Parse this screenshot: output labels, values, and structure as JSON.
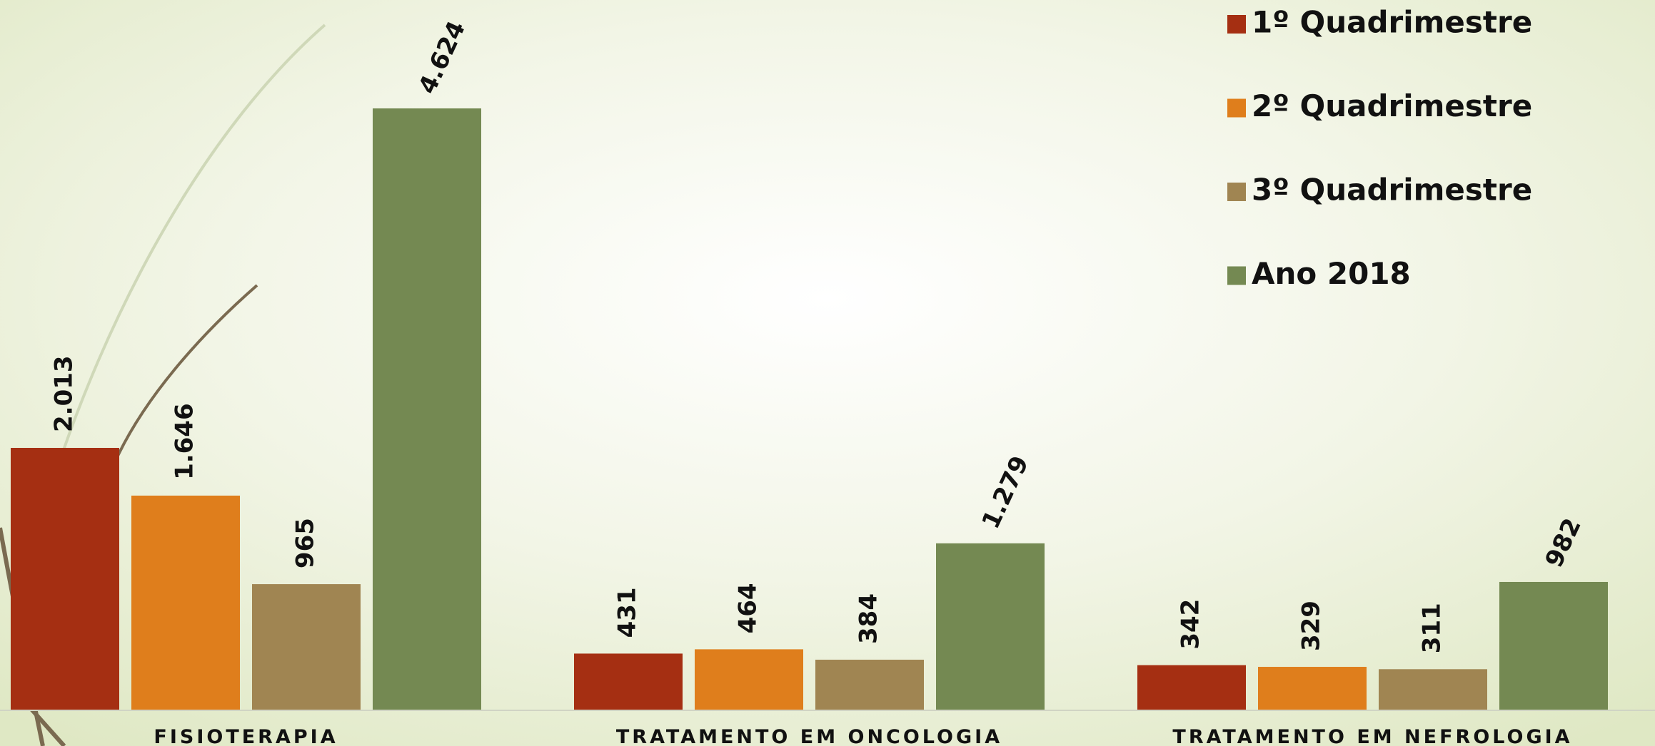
{
  "chart_data": {
    "type": "bar",
    "categories": [
      "FISIOTERAPIA",
      "TRATAMENTO EM ONCOLOGIA",
      "TRATAMENTO EM NEFROLOGIA"
    ],
    "series": [
      {
        "name": "1º Quadrimestre",
        "color": "#a52f12",
        "values": [
          2013,
          431,
          342
        ],
        "value_labels": [
          "2.013",
          "431",
          "342"
        ]
      },
      {
        "name": "2º Quadrimestre",
        "color": "#df7e1c",
        "values": [
          1646,
          464,
          329
        ],
        "value_labels": [
          "1.646",
          "464",
          "329"
        ]
      },
      {
        "name": "3º Quadrimestre",
        "color": "#a08552",
        "values": [
          965,
          384,
          311
        ],
        "value_labels": [
          "965",
          "384",
          "311"
        ]
      },
      {
        "name": "Ano 2018",
        "color": "#748952",
        "values": [
          4624,
          1279,
          982
        ],
        "value_labels": [
          "4.624",
          "1.279",
          "982"
        ]
      }
    ],
    "legend": "top-right"
  }
}
